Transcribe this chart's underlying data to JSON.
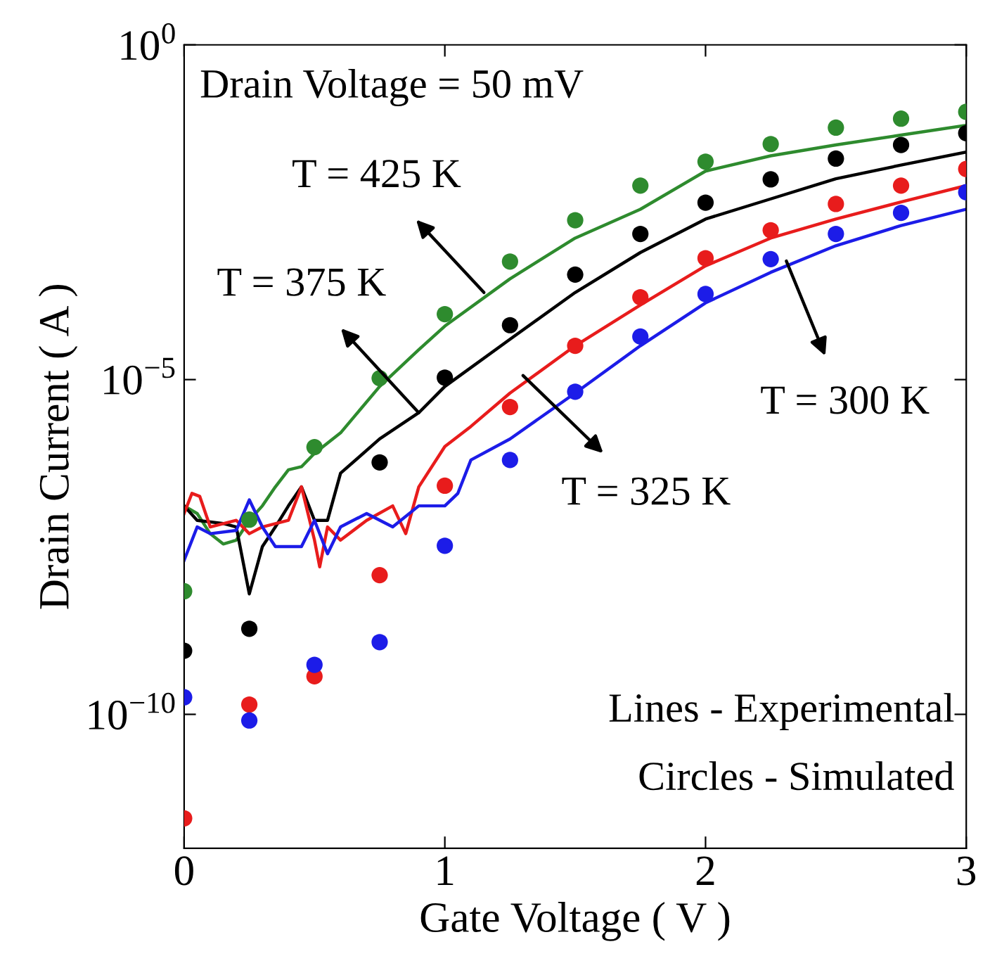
{
  "chart_data": {
    "type": "line",
    "xlabel": "Gate Voltage ( V )",
    "ylabel": "Drain Current ( A )",
    "log": "y",
    "xlim": [
      0,
      3
    ],
    "xticks": [
      0,
      1,
      2,
      3
    ],
    "ylim": [
      1e-12,
      1
    ],
    "yticks": [
      {
        "value": 1e-10,
        "label": "10$^{−10}$"
      },
      {
        "value": 1e-05,
        "label": "10$^{−5}$"
      },
      {
        "value": 1,
        "label": "10$^{0}$"
      }
    ],
    "grid": false,
    "legend": false,
    "annotations": [
      "Drain Voltage = 50 mV",
      {
        "text": "T = 425 K",
        "x": 1.15,
        "y": 0.0002
      },
      {
        "text": "T = 375 K",
        "x": 0.9,
        "y": 3.2e-06
      },
      {
        "text": "T = 325 K",
        "x": 1.3,
        "y": 1.15e-05
      },
      {
        "text": "T = 300 K",
        "x": 2.31,
        "y": 0.00059
      },
      "Lines - Experimental",
      "Circles - Simulated"
    ],
    "series": [
      {
        "type": "scatter",
        "marker": "circle",
        "color": "#2e8b2e",
        "x": [
          0,
          0.25,
          0.5,
          0.75,
          1,
          1.25,
          1.5,
          1.75,
          2,
          2.25,
          2.5,
          2.75,
          3
        ],
        "values": [
          6.9e-09,
          8.1e-08,
          9.8e-07,
          1.05e-05,
          9.5e-05,
          0.00058,
          0.0024,
          0.0079,
          0.018,
          0.033,
          0.058,
          0.079,
          0.1
        ]
      },
      {
        "type": "scatter",
        "marker": "circle",
        "color": "#000000",
        "x": [
          0,
          0.25,
          0.5,
          0.75,
          1,
          1.25,
          1.5,
          1.75,
          2,
          2.25,
          2.5,
          2.75,
          3
        ],
        "values": [
          8.9e-10,
          1.9e-09,
          null,
          5.8e-07,
          1.07e-05,
          6.5e-05,
          0.00037,
          0.0015,
          0.0044,
          0.0098,
          0.02,
          0.032,
          0.048
        ]
      },
      {
        "type": "scatter",
        "marker": "circle",
        "color": "#e81c1c",
        "x": [
          0,
          0.25,
          0.5,
          0.75,
          1,
          1.25,
          1.5,
          1.75,
          2,
          2.25,
          2.5,
          2.75,
          3
        ],
        "values": [
          2.8e-12,
          1.4e-10,
          3.7e-10,
          1.2e-08,
          2.6e-07,
          3.9e-06,
          3.2e-05,
          0.00017,
          0.00065,
          0.0017,
          0.0042,
          0.0079,
          0.014
        ]
      },
      {
        "type": "scatter",
        "marker": "circle",
        "color": "#1c1ce8",
        "x": [
          0,
          0.25,
          0.5,
          0.75,
          1,
          1.25,
          1.5,
          1.75,
          2,
          2.25,
          2.5,
          2.75,
          3
        ],
        "values": [
          1.8e-10,
          8.1e-11,
          5.5e-10,
          1.2e-09,
          3.3e-08,
          6.3e-07,
          6.6e-06,
          4.4e-05,
          0.00019,
          0.00063,
          0.0015,
          0.0031,
          0.0063
        ]
      },
      {
        "color": "#2e8b2e",
        "x": [
          0,
          0.05,
          0.1,
          0.15,
          0.2,
          0.25,
          0.3,
          0.35,
          0.4,
          0.45,
          0.5,
          0.6,
          0.75,
          0.9,
          1.0,
          1.25,
          1.5,
          1.75,
          2.0,
          2.25,
          2.5,
          2.75,
          3.0
        ],
        "values": [
          1.3e-07,
          1e-07,
          5e-08,
          3.5e-08,
          4e-08,
          7.9e-08,
          1.3e-07,
          2.5e-07,
          4.5e-07,
          5e-07,
          7.9e-07,
          1.6e-06,
          7.9e-06,
          2.8e-05,
          6.3e-05,
          0.00032,
          0.0013,
          0.0035,
          0.013,
          0.022,
          0.032,
          0.045,
          0.063
        ]
      },
      {
        "color": "#000000",
        "x": [
          0,
          0.05,
          0.15,
          0.2,
          0.25,
          0.3,
          0.35,
          0.4,
          0.45,
          0.5,
          0.55,
          0.6,
          0.75,
          0.9,
          1.0,
          1.25,
          1.5,
          1.75,
          2.0,
          2.25,
          2.5,
          2.75,
          3.0
        ],
        "values": [
          1.3e-07,
          7.9e-08,
          7.1e-08,
          6.3e-08,
          6.3e-09,
          3.2e-08,
          6.3e-08,
          1.3e-07,
          2.5e-07,
          7.9e-08,
          7.9e-08,
          4e-07,
          1.3e-06,
          3.2e-06,
          7.9e-06,
          4e-05,
          0.0002,
          0.00079,
          0.0025,
          0.005,
          0.01,
          0.016,
          0.025
        ]
      },
      {
        "color": "#e81c1c",
        "x": [
          0,
          0.03,
          0.06,
          0.1,
          0.2,
          0.25,
          0.3,
          0.4,
          0.45,
          0.5,
          0.52,
          0.55,
          0.6,
          0.7,
          0.8,
          0.85,
          0.9,
          1.0,
          1.1,
          1.25,
          1.5,
          1.75,
          2.0,
          2.25,
          2.5,
          2.75,
          3.0
        ],
        "values": [
          1e-07,
          2e-07,
          1.8e-07,
          6.3e-08,
          7.9e-08,
          5e-08,
          6.3e-08,
          7.9e-08,
          2.5e-07,
          4e-08,
          1.6e-08,
          6.3e-08,
          4e-08,
          7.9e-08,
          1.3e-07,
          5e-08,
          2.5e-07,
          1e-06,
          2e-06,
          6.3e-06,
          3.2e-05,
          0.00013,
          0.0005,
          0.0013,
          0.0025,
          0.0045,
          0.0079
        ]
      },
      {
        "color": "#1c1ce8",
        "x": [
          0,
          0.05,
          0.1,
          0.2,
          0.25,
          0.3,
          0.35,
          0.4,
          0.45,
          0.5,
          0.55,
          0.6,
          0.7,
          0.8,
          0.9,
          1.0,
          1.05,
          1.1,
          1.25,
          1.5,
          1.75,
          2.0,
          2.25,
          2.5,
          2.75,
          3.0
        ],
        "values": [
          2e-08,
          6.3e-08,
          5e-08,
          5.6e-08,
          1.6e-07,
          6.3e-08,
          3.2e-08,
          3.2e-08,
          3.2e-08,
          7.9e-08,
          2.5e-08,
          6.3e-08,
          1e-07,
          6.3e-08,
          1.3e-07,
          1.3e-07,
          2e-07,
          6.3e-07,
          1.3e-06,
          6.3e-06,
          3.2e-05,
          0.00014,
          0.0004,
          0.001,
          0.002,
          0.0035
        ]
      }
    ]
  }
}
